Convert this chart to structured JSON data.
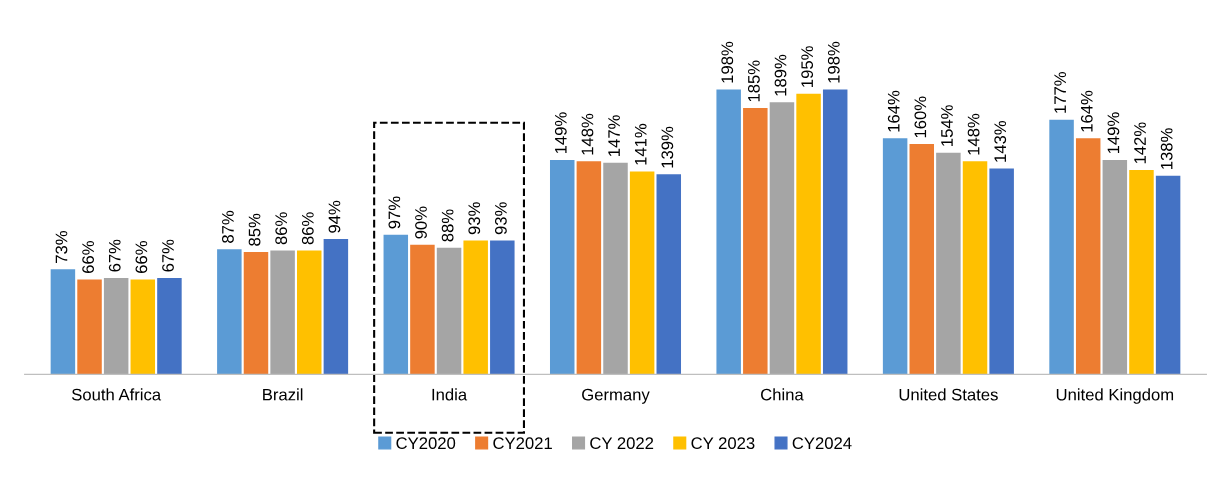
{
  "chart_data": {
    "type": "bar",
    "categories": [
      "South Africa",
      "Brazil",
      "India",
      "Germany",
      "China",
      "United States",
      "United Kingdom"
    ],
    "series": [
      {
        "name": "CY2020",
        "color": "#5b9bd5",
        "values": [
          73,
          87,
          97,
          149,
          198,
          164,
          177
        ],
        "value_labels": [
          "73%",
          "87%",
          "97%",
          "149%",
          "198%",
          "164%",
          "177%"
        ]
      },
      {
        "name": "CY2021",
        "color": "#ed7d31",
        "values": [
          66,
          85,
          90,
          148,
          185,
          160,
          164
        ],
        "value_labels": [
          "66%",
          "85%",
          "90%",
          "148%",
          "185%",
          "160%",
          "164%"
        ]
      },
      {
        "name": "CY 2022",
        "color": "#a5a5a5",
        "values": [
          67,
          86,
          88,
          147,
          189,
          154,
          149
        ],
        "value_labels": [
          "67%",
          "86%",
          "88%",
          "147%",
          "189%",
          "154%",
          "149%"
        ]
      },
      {
        "name": "CY 2023",
        "color": "#ffc000",
        "values": [
          66,
          86,
          93,
          141,
          195,
          148,
          142
        ],
        "value_labels": [
          "66%",
          "86%",
          "93%",
          "141%",
          "195%",
          "148%",
          "142%"
        ]
      },
      {
        "name": "CY2024",
        "color": "#4472c4",
        "values": [
          67,
          94,
          93,
          139,
          198,
          143,
          138
        ],
        "value_labels": [
          "67%",
          "94%",
          "93%",
          "139%",
          "198%",
          "143%",
          "138%"
        ]
      }
    ],
    "grid": false,
    "legend": "bottom"
  }
}
